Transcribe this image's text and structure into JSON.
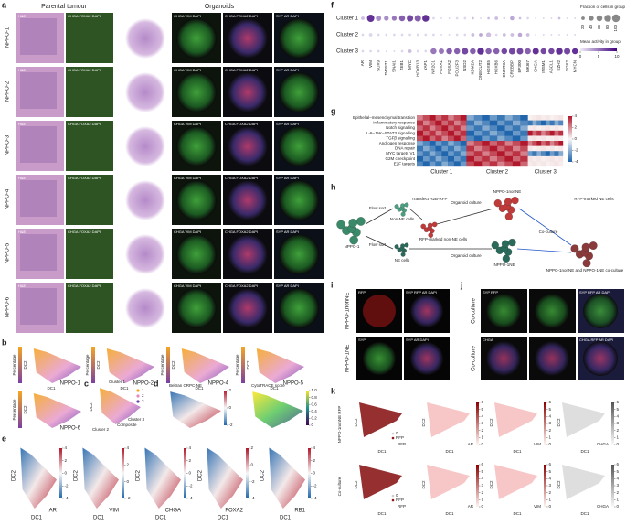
{
  "a": {
    "label": "a",
    "header_left": "Parental tumour",
    "header_right": "Organoids",
    "rows": [
      "NPPO-1",
      "NPPO-2",
      "NPPO-3",
      "NPPO-4",
      "NPPO-5",
      "NPPO-6"
    ],
    "columns": [
      "H&E",
      "CHGA FOXA2 DAPI",
      "H&E",
      "CHGA VIM DAPI",
      "CHGA FOXA2 DAPI",
      "SYP AR DAPI"
    ]
  },
  "b": {
    "label": "b",
    "samples": [
      "NPPO-1",
      "NPPO-2",
      "NPPO-4",
      "NPPO-5",
      "NPPO-6"
    ],
    "x_label": "DC1",
    "y_label": "DC2",
    "bar_label": "Percentage"
  },
  "c": {
    "label": "c",
    "legend": [
      "1",
      "2",
      "3"
    ],
    "annotations": [
      "Cluster 1",
      "Cluster 2",
      "Cluster 3",
      "Composite"
    ],
    "y_label": "DC2"
  },
  "d": {
    "label": "d",
    "plots": [
      {
        "title": "Beltran CRPC-NE",
        "ticks": [
          2,
          0,
          -2
        ]
      },
      {
        "title": "CytoTRACE score",
        "ticks": [
          {
            "value": 1,
            "label": "1.0"
          },
          0.8,
          0.6,
          0.4,
          0.2,
          0
        ]
      }
    ]
  },
  "e": {
    "label": "e",
    "x_label": "DC1",
    "y_label": "DC2",
    "plots": [
      {
        "gene": "AR",
        "ticks": [
          4,
          2,
          0,
          -2,
          -4
        ]
      },
      {
        "gene": "VIM",
        "ticks": [
          4,
          2,
          0,
          -2
        ]
      },
      {
        "gene": "CHGA",
        "ticks": [
          4,
          2,
          0,
          -2,
          -4
        ]
      },
      {
        "gene": "FOXA2",
        "ticks": [
          2,
          0,
          -2,
          -4
        ]
      },
      {
        "gene": "RB1",
        "ticks": [
          4,
          2,
          0,
          -2,
          -4
        ]
      }
    ]
  },
  "f": {
    "label": "f",
    "clusters": [
      "Cluster 1",
      "Cluster 2",
      "Cluster 3"
    ],
    "genes": [
      "AR",
      "VIM",
      "SOX9",
      "TWIST1",
      "SNAI1",
      "ZEB1",
      "MYC",
      "HOXB13",
      "YAP1",
      "NR2C1",
      "FOXA1",
      "FOXA2",
      "POU2F3",
      "NSD2",
      "KDM2A",
      "ONECUT2",
      "HOXB5",
      "HOXB6",
      "DNMT3A",
      "CREBBP",
      "EP300",
      "MKI67",
      "CHGA",
      "INSM1",
      "ASCL1",
      "EZH2",
      "SOX2",
      "MYCN"
    ],
    "fraction": [
      [
        20,
        90,
        50,
        40,
        40,
        60,
        70,
        70,
        80,
        10,
        5,
        5,
        10,
        10,
        10,
        5,
        10,
        20,
        10,
        30,
        10,
        10,
        5,
        5,
        5,
        10,
        5,
        5
      ],
      [
        10,
        20,
        10,
        10,
        10,
        10,
        10,
        10,
        10,
        10,
        5,
        5,
        10,
        10,
        20,
        20,
        40,
        10,
        20,
        20,
        30,
        20,
        5,
        5,
        5,
        5,
        5,
        5
      ],
      [
        10,
        10,
        10,
        5,
        5,
        10,
        20,
        10,
        10,
        60,
        50,
        60,
        60,
        70,
        60,
        80,
        60,
        60,
        60,
        70,
        70,
        60,
        70,
        60,
        60,
        80,
        70,
        60
      ]
    ],
    "activity": [
      [
        2,
        8,
        4,
        4,
        5,
        6,
        7,
        6,
        8,
        1,
        1,
        1,
        1,
        1,
        2,
        1,
        2,
        2,
        1,
        3,
        2,
        1,
        1,
        1,
        1,
        2,
        1,
        1
      ],
      [
        1,
        1,
        1,
        1,
        1,
        1,
        1,
        1,
        1,
        1,
        1,
        1,
        1,
        1,
        2,
        3,
        2,
        1,
        2,
        2,
        3,
        2,
        1,
        1,
        1,
        1,
        1,
        1
      ],
      [
        1,
        1,
        1,
        1,
        1,
        1,
        2,
        1,
        1,
        5,
        5,
        6,
        6,
        7,
        6,
        8,
        6,
        6,
        7,
        7,
        7,
        6,
        8,
        7,
        7,
        8,
        7,
        8
      ]
    ],
    "size_title": "Fraction of cells in group (%)",
    "size_ticks": [
      20,
      40,
      60,
      80,
      100
    ],
    "color_title": "Mean activity in group",
    "color_ticks": [
      0,
      5,
      10
    ]
  },
  "g": {
    "label": "g",
    "pathways": [
      "Epithelial–mesenchymal transition",
      "Inflammatory response",
      "Notch signalling",
      "IL-6–JAK–STAT3 signalling",
      "TGFβ signalling",
      "Androgen response",
      "DNA repair",
      "MYC targets V1",
      "G2M checkpoint",
      "E2F targets"
    ],
    "clusters": [
      "Cluster 1",
      "Cluster 2",
      "Cluster 3"
    ],
    "ticks": [
      4,
      2,
      0,
      -2,
      -4
    ]
  },
  "h": {
    "label": "h",
    "texts": [
      "NPPO-1",
      "Flow sort",
      "Flow sort",
      "Transfect H2B-RFP",
      "Non-NE cells",
      "NE cells",
      "Organoid culture",
      "RFP-marked non-NE cells",
      "NPPO-1nonNE",
      "Organoid culture",
      "NPPO-1NE",
      "Co-culture",
      "RFP-marked NE cells",
      "NPPO-1nonNE and NPPO-1NE co-culture"
    ]
  },
  "i": {
    "label": "i",
    "rows": [
      "NPPO-1nonNE",
      "NPPO-1NE"
    ],
    "stains": [
      "RFP",
      "SYP RFP AR DAPI",
      "SYP",
      "SYP AR DAPI"
    ]
  },
  "j": {
    "label": "j",
    "rows": [
      "Co-culture",
      "Co-culture"
    ],
    "stains": [
      "SYP RFP",
      "SYP RFP AR DAPI",
      "CHGA",
      "CHGA RFP",
      "CHGA RFP AR DAPI"
    ]
  },
  "k": {
    "label": "k",
    "rows": [
      "NPPO-1nonNE RFP",
      "Co-culture"
    ],
    "genes": [
      "RFP",
      "AR",
      "VIM",
      "CHGA"
    ],
    "x_label": "DC1",
    "y_label": "DC2",
    "legend": [
      "0",
      "RFP"
    ],
    "ticks": [
      6,
      5,
      4,
      3,
      2,
      1,
      0
    ]
  }
}
